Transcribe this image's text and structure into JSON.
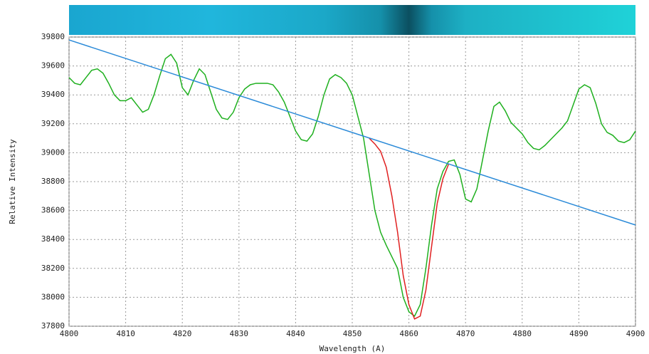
{
  "chart_data": {
    "type": "line",
    "xlabel": "Wavelength (A)",
    "ylabel": "Relative Intensity",
    "xlim": [
      4800,
      4900
    ],
    "ylim": [
      37800,
      39800
    ],
    "xticks": [
      4800,
      4810,
      4820,
      4830,
      4840,
      4850,
      4860,
      4870,
      4880,
      4890,
      4900
    ],
    "yticks": [
      37800,
      38000,
      38200,
      38400,
      38600,
      38800,
      39000,
      39200,
      39400,
      39600,
      39800
    ],
    "grid": true,
    "series": [
      {
        "color": "#1fb01f",
        "x": [
          4800,
          4801,
          4802,
          4803,
          4804,
          4805,
          4806,
          4807,
          4808,
          4809,
          4810,
          4811,
          4812,
          4813,
          4814,
          4815,
          4816,
          4817,
          4818,
          4819,
          4820,
          4821,
          4822,
          4823,
          4824,
          4825,
          4826,
          4827,
          4828,
          4829,
          4830,
          4831,
          4832,
          4833,
          4834,
          4835,
          4836,
          4837,
          4838,
          4839,
          4840,
          4841,
          4842,
          4843,
          4844,
          4845,
          4846,
          4847,
          4848,
          4849,
          4850,
          4851,
          4852,
          4853,
          4854,
          4855,
          4856,
          4857,
          4858,
          4859,
          4860,
          4861,
          4862,
          4863,
          4864,
          4865,
          4866,
          4867,
          4868,
          4869,
          4870,
          4871,
          4872,
          4873,
          4874,
          4875,
          4876,
          4877,
          4878,
          4879,
          4880,
          4881,
          4882,
          4883,
          4884,
          4885,
          4886,
          4887,
          4888,
          4889,
          4890,
          4891,
          4892,
          4893,
          4894,
          4895,
          4896,
          4897,
          4898,
          4899,
          4900
        ],
        "values": [
          39520,
          39480,
          39470,
          39520,
          39570,
          39580,
          39550,
          39480,
          39400,
          39360,
          39360,
          39380,
          39330,
          39280,
          39300,
          39400,
          39530,
          39650,
          39680,
          39620,
          39450,
          39400,
          39500,
          39580,
          39540,
          39420,
          39300,
          39240,
          39230,
          39280,
          39380,
          39440,
          39470,
          39480,
          39480,
          39480,
          39470,
          39420,
          39350,
          39250,
          39150,
          39090,
          39080,
          39130,
          39250,
          39400,
          39510,
          39540,
          39520,
          39480,
          39400,
          39250,
          39100,
          38850,
          38600,
          38450,
          38360,
          38280,
          38200,
          38000,
          37900,
          37870,
          37950,
          38200,
          38500,
          38750,
          38870,
          38940,
          38950,
          38850,
          38680,
          38660,
          38750,
          38950,
          39150,
          39320,
          39350,
          39290,
          39210,
          39170,
          39130,
          39070,
          39030,
          39020,
          39050,
          39090,
          39130,
          39170,
          39220,
          39330,
          39440,
          39470,
          39450,
          39340,
          39200,
          39140,
          39120,
          39080,
          39070,
          39090,
          39150
        ]
      },
      {
        "color": "#e02020",
        "x": [
          4853,
          4854,
          4855,
          4856,
          4857,
          4858,
          4859,
          4860,
          4861,
          4862,
          4863,
          4864,
          4865,
          4866,
          4867
        ],
        "values": [
          39100,
          39060,
          39010,
          38900,
          38700,
          38450,
          38150,
          37950,
          37850,
          37870,
          38050,
          38350,
          38650,
          38820,
          38920
        ]
      },
      {
        "color": "#2a8ad8",
        "x": [
          4800,
          4900
        ],
        "values": [
          39780,
          38500
        ]
      }
    ]
  }
}
